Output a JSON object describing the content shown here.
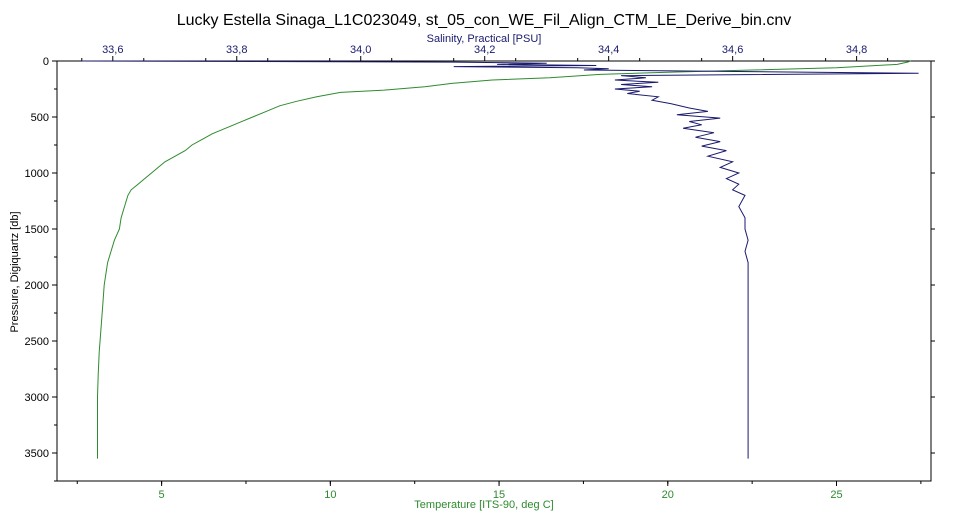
{
  "chart_data": {
    "type": "line",
    "title": "Lucky Estella Sinaga_L1C023049, st_05_con_WE_Fil_Align_CTM_LE_Derive_bin.cnv",
    "ylabel": "Pressure, Digiquartz [db]",
    "x_bottom_label": "Temperature [ITS-90, deg C]",
    "x_top_label": "Salinity, Practical [PSU]",
    "ylim": [
      3750,
      0
    ],
    "x_bottom_lim": [
      1.9,
      27.8
    ],
    "x_top_lim": [
      33.51,
      34.92
    ],
    "y_ticks": [
      "0",
      "500",
      "1000",
      "1500",
      "2000",
      "2500",
      "3000",
      "3500"
    ],
    "x_bottom_ticks": [
      "5",
      "10",
      "15",
      "20",
      "25"
    ],
    "x_top_ticks": [
      "33,6",
      "33,8",
      "34,0",
      "34,2",
      "34,4",
      "34,6",
      "34,8"
    ],
    "grid": false,
    "colors": {
      "temperature": "#2e8b2e",
      "salinity": "#1a1a6e",
      "axes": "#000000"
    },
    "series": [
      {
        "axis": "bottom",
        "points": [
          [
            27.2,
            0
          ],
          [
            27.1,
            10
          ],
          [
            26.8,
            30
          ],
          [
            25.0,
            60
          ],
          [
            22.5,
            80
          ],
          [
            20.0,
            100
          ],
          [
            18.0,
            120
          ],
          [
            16.5,
            150
          ],
          [
            14.8,
            170
          ],
          [
            13.6,
            200
          ],
          [
            12.8,
            230
          ],
          [
            11.6,
            260
          ],
          [
            10.3,
            280
          ],
          [
            9.6,
            320
          ],
          [
            9.0,
            360
          ],
          [
            8.5,
            400
          ],
          [
            8.1,
            450
          ],
          [
            7.7,
            500
          ],
          [
            7.3,
            550
          ],
          [
            6.9,
            600
          ],
          [
            6.5,
            650
          ],
          [
            6.2,
            700
          ],
          [
            5.9,
            750
          ],
          [
            5.7,
            800
          ],
          [
            5.4,
            850
          ],
          [
            5.1,
            900
          ],
          [
            4.9,
            950
          ],
          [
            4.7,
            1000
          ],
          [
            4.5,
            1050
          ],
          [
            4.3,
            1100
          ],
          [
            4.1,
            1150
          ],
          [
            4.0,
            1200
          ],
          [
            3.9,
            1300
          ],
          [
            3.8,
            1400
          ],
          [
            3.75,
            1500
          ],
          [
            3.6,
            1600
          ],
          [
            3.5,
            1700
          ],
          [
            3.4,
            1800
          ],
          [
            3.35,
            1900
          ],
          [
            3.3,
            2000
          ],
          [
            3.25,
            2200
          ],
          [
            3.2,
            2400
          ],
          [
            3.15,
            2600
          ],
          [
            3.12,
            2800
          ],
          [
            3.1,
            3000
          ],
          [
            3.1,
            3200
          ],
          [
            3.1,
            3400
          ],
          [
            3.1,
            3550
          ]
        ]
      },
      {
        "axis": "top",
        "points": [
          [
            33.55,
            0
          ],
          [
            34.15,
            10
          ],
          [
            34.3,
            20
          ],
          [
            34.22,
            30
          ],
          [
            34.38,
            40
          ],
          [
            34.15,
            50
          ],
          [
            34.35,
            60
          ],
          [
            34.4,
            70
          ],
          [
            34.36,
            80
          ],
          [
            34.9,
            110
          ],
          [
            34.42,
            130
          ],
          [
            34.46,
            150
          ],
          [
            34.41,
            170
          ],
          [
            34.48,
            190
          ],
          [
            34.42,
            210
          ],
          [
            34.47,
            230
          ],
          [
            34.41,
            250
          ],
          [
            34.45,
            270
          ],
          [
            34.43,
            290
          ],
          [
            34.48,
            320
          ],
          [
            34.47,
            350
          ],
          [
            34.5,
            380
          ],
          [
            34.53,
            420
          ],
          [
            34.56,
            450
          ],
          [
            34.51,
            480
          ],
          [
            34.58,
            510
          ],
          [
            34.53,
            540
          ],
          [
            34.55,
            570
          ],
          [
            34.52,
            600
          ],
          [
            34.57,
            640
          ],
          [
            34.54,
            680
          ],
          [
            34.58,
            720
          ],
          [
            34.55,
            760
          ],
          [
            34.59,
            800
          ],
          [
            34.56,
            850
          ],
          [
            34.6,
            900
          ],
          [
            34.58,
            950
          ],
          [
            34.61,
            1000
          ],
          [
            34.59,
            1050
          ],
          [
            34.61,
            1100
          ],
          [
            34.6,
            1150
          ],
          [
            34.62,
            1200
          ],
          [
            34.61,
            1300
          ],
          [
            34.62,
            1400
          ],
          [
            34.62,
            1500
          ],
          [
            34.625,
            1600
          ],
          [
            34.62,
            1700
          ],
          [
            34.625,
            1800
          ],
          [
            34.625,
            1900
          ],
          [
            34.625,
            2000
          ],
          [
            34.625,
            2200
          ],
          [
            34.625,
            2400
          ],
          [
            34.625,
            2600
          ],
          [
            34.625,
            2800
          ],
          [
            34.625,
            3000
          ],
          [
            34.625,
            3200
          ],
          [
            34.625,
            3400
          ],
          [
            34.625,
            3550
          ]
        ]
      }
    ]
  }
}
